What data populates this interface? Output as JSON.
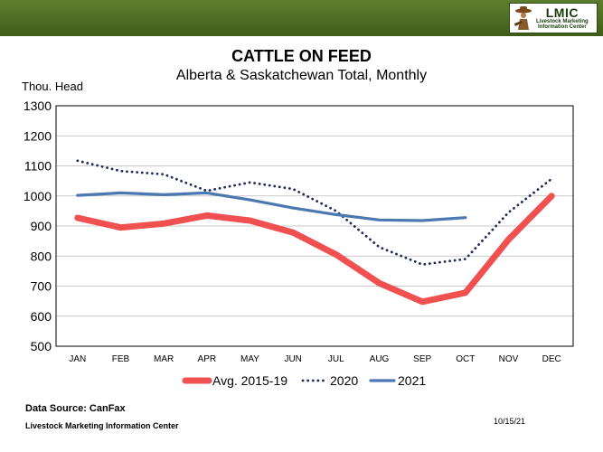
{
  "header": {
    "logo_name": "LMIC",
    "logo_line1": "Livestock Marketing",
    "logo_line2": "Information Center",
    "logo_icon": "cowboy-icon"
  },
  "chart_data": {
    "type": "line",
    "title": "CATTLE ON FEED",
    "subtitle": "Alberta & Saskatchewan Total, Monthly",
    "ylabel": "Thou. Head",
    "xlabel": "",
    "ylim": [
      500,
      1300
    ],
    "yticks": [
      500,
      600,
      700,
      800,
      900,
      1000,
      1100,
      1200,
      1300
    ],
    "categories": [
      "JAN",
      "FEB",
      "MAR",
      "APR",
      "MAY",
      "JUN",
      "JUL",
      "AUG",
      "SEP",
      "OCT",
      "NOV",
      "DEC"
    ],
    "grid": true,
    "legend_position": "bottom",
    "series": [
      {
        "name": "Avg. 2015-19",
        "color": "#f05050",
        "style": "solid-thick",
        "values": [
          927,
          895,
          908,
          935,
          918,
          878,
          805,
          710,
          648,
          678,
          855,
          1000
        ]
      },
      {
        "name": "2020",
        "color": "#1f2a5c",
        "style": "dotted",
        "values": [
          1117,
          1083,
          1072,
          1017,
          1045,
          1023,
          950,
          830,
          772,
          790,
          945,
          1057
        ]
      },
      {
        "name": "2021",
        "color": "#4a78b0",
        "style": "solid",
        "values": [
          1002,
          1010,
          1004,
          1010,
          987,
          960,
          938,
          920,
          918,
          928,
          null,
          null
        ]
      }
    ]
  },
  "footer": {
    "source": "Data Source:  CanFax",
    "org": "Livestock Marketing Information Center",
    "date": "10/15/21"
  }
}
